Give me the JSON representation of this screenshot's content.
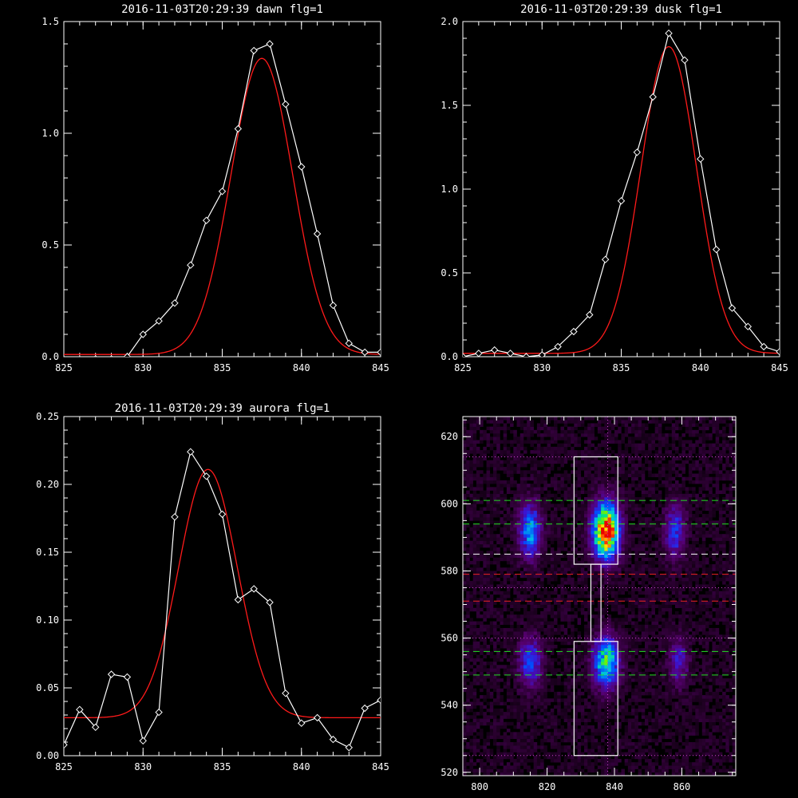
{
  "colors": {
    "background": "#000000",
    "axes": "#ffffff",
    "data_line": "#ffffff",
    "fit_line": "#ff1a1a",
    "guide_green": "#22dd22",
    "guide_red": "#ee2222",
    "guide_white": "#ffffff",
    "guide_magenta": "#cc44cc"
  },
  "chart_data": [
    {
      "type": "line",
      "title": "2016-11-03T20:29:39 dawn flg=1",
      "xlim": [
        825,
        845
      ],
      "ylim": [
        0,
        1.5
      ],
      "xticks": [
        "825",
        "830",
        "835",
        "840",
        "845"
      ],
      "yticks": [
        "0.0",
        "0.5",
        "1.0",
        "1.5"
      ],
      "xtick_values": [
        825,
        830,
        835,
        840,
        845
      ],
      "ytick_values": [
        0,
        0.5,
        1.0,
        1.5
      ],
      "xminor": 5,
      "yminor": 5,
      "series": [
        {
          "role": "data",
          "marker": "diamond",
          "x": [
            825,
            826,
            827,
            828,
            829,
            830,
            831,
            832,
            833,
            834,
            835,
            836,
            837,
            838,
            839,
            840,
            841,
            842,
            843,
            844,
            845
          ],
          "y": [
            -0.03,
            -0.02,
            -0.01,
            -0.01,
            0.0,
            0.1,
            0.16,
            0.24,
            0.41,
            0.61,
            0.74,
            1.02,
            1.37,
            1.4,
            1.13,
            0.85,
            0.55,
            0.23,
            0.06,
            0.02,
            0.02
          ]
        },
        {
          "role": "fit",
          "gaussian": {
            "amp": 1.325,
            "center": 837.5,
            "sigma": 1.95,
            "offset": 0.01
          }
        }
      ]
    },
    {
      "type": "line",
      "title": "2016-11-03T20:29:39 dusk flg=1",
      "xlim": [
        825,
        845
      ],
      "ylim": [
        0,
        2.0
      ],
      "xticks": [
        "825",
        "830",
        "835",
        "840",
        "845"
      ],
      "yticks": [
        "0.0",
        "0.5",
        "1.0",
        "1.5",
        "2.0"
      ],
      "xtick_values": [
        825,
        830,
        835,
        840,
        845
      ],
      "ytick_values": [
        0,
        0.5,
        1.0,
        1.5,
        2.0
      ],
      "xminor": 5,
      "yminor": 5,
      "series": [
        {
          "role": "data",
          "marker": "diamond",
          "x": [
            825,
            826,
            827,
            828,
            829,
            830,
            831,
            832,
            833,
            834,
            835,
            836,
            837,
            838,
            839,
            840,
            841,
            842,
            843,
            844,
            845
          ],
          "y": [
            0.0,
            0.02,
            0.04,
            0.02,
            0.0,
            0.01,
            0.06,
            0.15,
            0.25,
            0.58,
            0.93,
            1.22,
            1.55,
            1.93,
            1.77,
            1.18,
            0.64,
            0.29,
            0.18,
            0.06,
            0.03
          ]
        },
        {
          "role": "fit",
          "gaussian": {
            "amp": 1.83,
            "center": 838.0,
            "sigma": 1.75,
            "offset": 0.02
          }
        }
      ]
    },
    {
      "type": "line",
      "title": "2016-11-03T20:29:39 aurora flg=1",
      "xlim": [
        825,
        845
      ],
      "ylim": [
        0,
        0.25
      ],
      "xticks": [
        "825",
        "830",
        "835",
        "840",
        "845"
      ],
      "yticks": [
        "0.00",
        "0.05",
        "0.10",
        "0.15",
        "0.20",
        "0.25"
      ],
      "xtick_values": [
        825,
        830,
        835,
        840,
        845
      ],
      "ytick_values": [
        0,
        0.05,
        0.1,
        0.15,
        0.2,
        0.25
      ],
      "xminor": 5,
      "yminor": 5,
      "series": [
        {
          "role": "data",
          "marker": "diamond",
          "x": [
            825,
            826,
            827,
            828,
            829,
            830,
            831,
            832,
            833,
            834,
            835,
            836,
            837,
            838,
            839,
            840,
            841,
            842,
            843,
            844,
            845
          ],
          "y": [
            0.008,
            0.034,
            0.021,
            0.06,
            0.058,
            0.011,
            0.032,
            0.176,
            0.224,
            0.206,
            0.178,
            0.115,
            0.123,
            0.113,
            0.046,
            0.024,
            0.028,
            0.012,
            0.006,
            0.035,
            0.041
          ]
        },
        {
          "role": "fit",
          "gaussian": {
            "amp": 0.183,
            "center": 834.1,
            "sigma": 1.85,
            "offset": 0.028
          }
        }
      ]
    },
    {
      "type": "heatmap",
      "title": "",
      "xlim": [
        795,
        876
      ],
      "ylim": [
        519,
        626
      ],
      "xticks": [
        "800",
        "820",
        "840",
        "860"
      ],
      "yticks": [
        "520",
        "540",
        "560",
        "580",
        "600",
        "620"
      ],
      "xtick_values": [
        800,
        820,
        840,
        860
      ],
      "ytick_values": [
        520,
        540,
        560,
        580,
        600,
        620
      ],
      "xminor": 4,
      "yminor": 4,
      "blobs": [
        {
          "x": 815,
          "y": 592,
          "sx": 2.2,
          "sy": 5.5,
          "amp": 0.42
        },
        {
          "x": 837.5,
          "y": 592,
          "sx": 2.6,
          "sy": 5.5,
          "amp": 1.0
        },
        {
          "x": 858,
          "y": 592,
          "sx": 2.0,
          "sy": 5.5,
          "amp": 0.3
        },
        {
          "x": 815,
          "y": 553,
          "sx": 2.2,
          "sy": 5.0,
          "amp": 0.34
        },
        {
          "x": 837.5,
          "y": 553,
          "sx": 2.6,
          "sy": 5.0,
          "amp": 0.6
        },
        {
          "x": 859,
          "y": 553,
          "sx": 2.0,
          "sy": 5.0,
          "amp": 0.22
        }
      ],
      "background_level": 0.06,
      "guides": {
        "green_dashed_y": [
          601,
          594,
          556,
          549
        ],
        "red_dashed_y": [
          579,
          571
        ],
        "white_dashed_y": [
          585
        ],
        "magenta_dotted_y": [
          614,
          575,
          560,
          525
        ],
        "magenta_dotted_x": [
          838
        ]
      },
      "boxes": [
        {
          "x0": 828,
          "x1": 841,
          "y0": 582,
          "y1": 614
        },
        {
          "x0": 828,
          "x1": 841,
          "y0": 525,
          "y1": 559
        },
        {
          "x0": 833,
          "x1": 836,
          "y0": 559,
          "y1": 582
        }
      ]
    }
  ]
}
